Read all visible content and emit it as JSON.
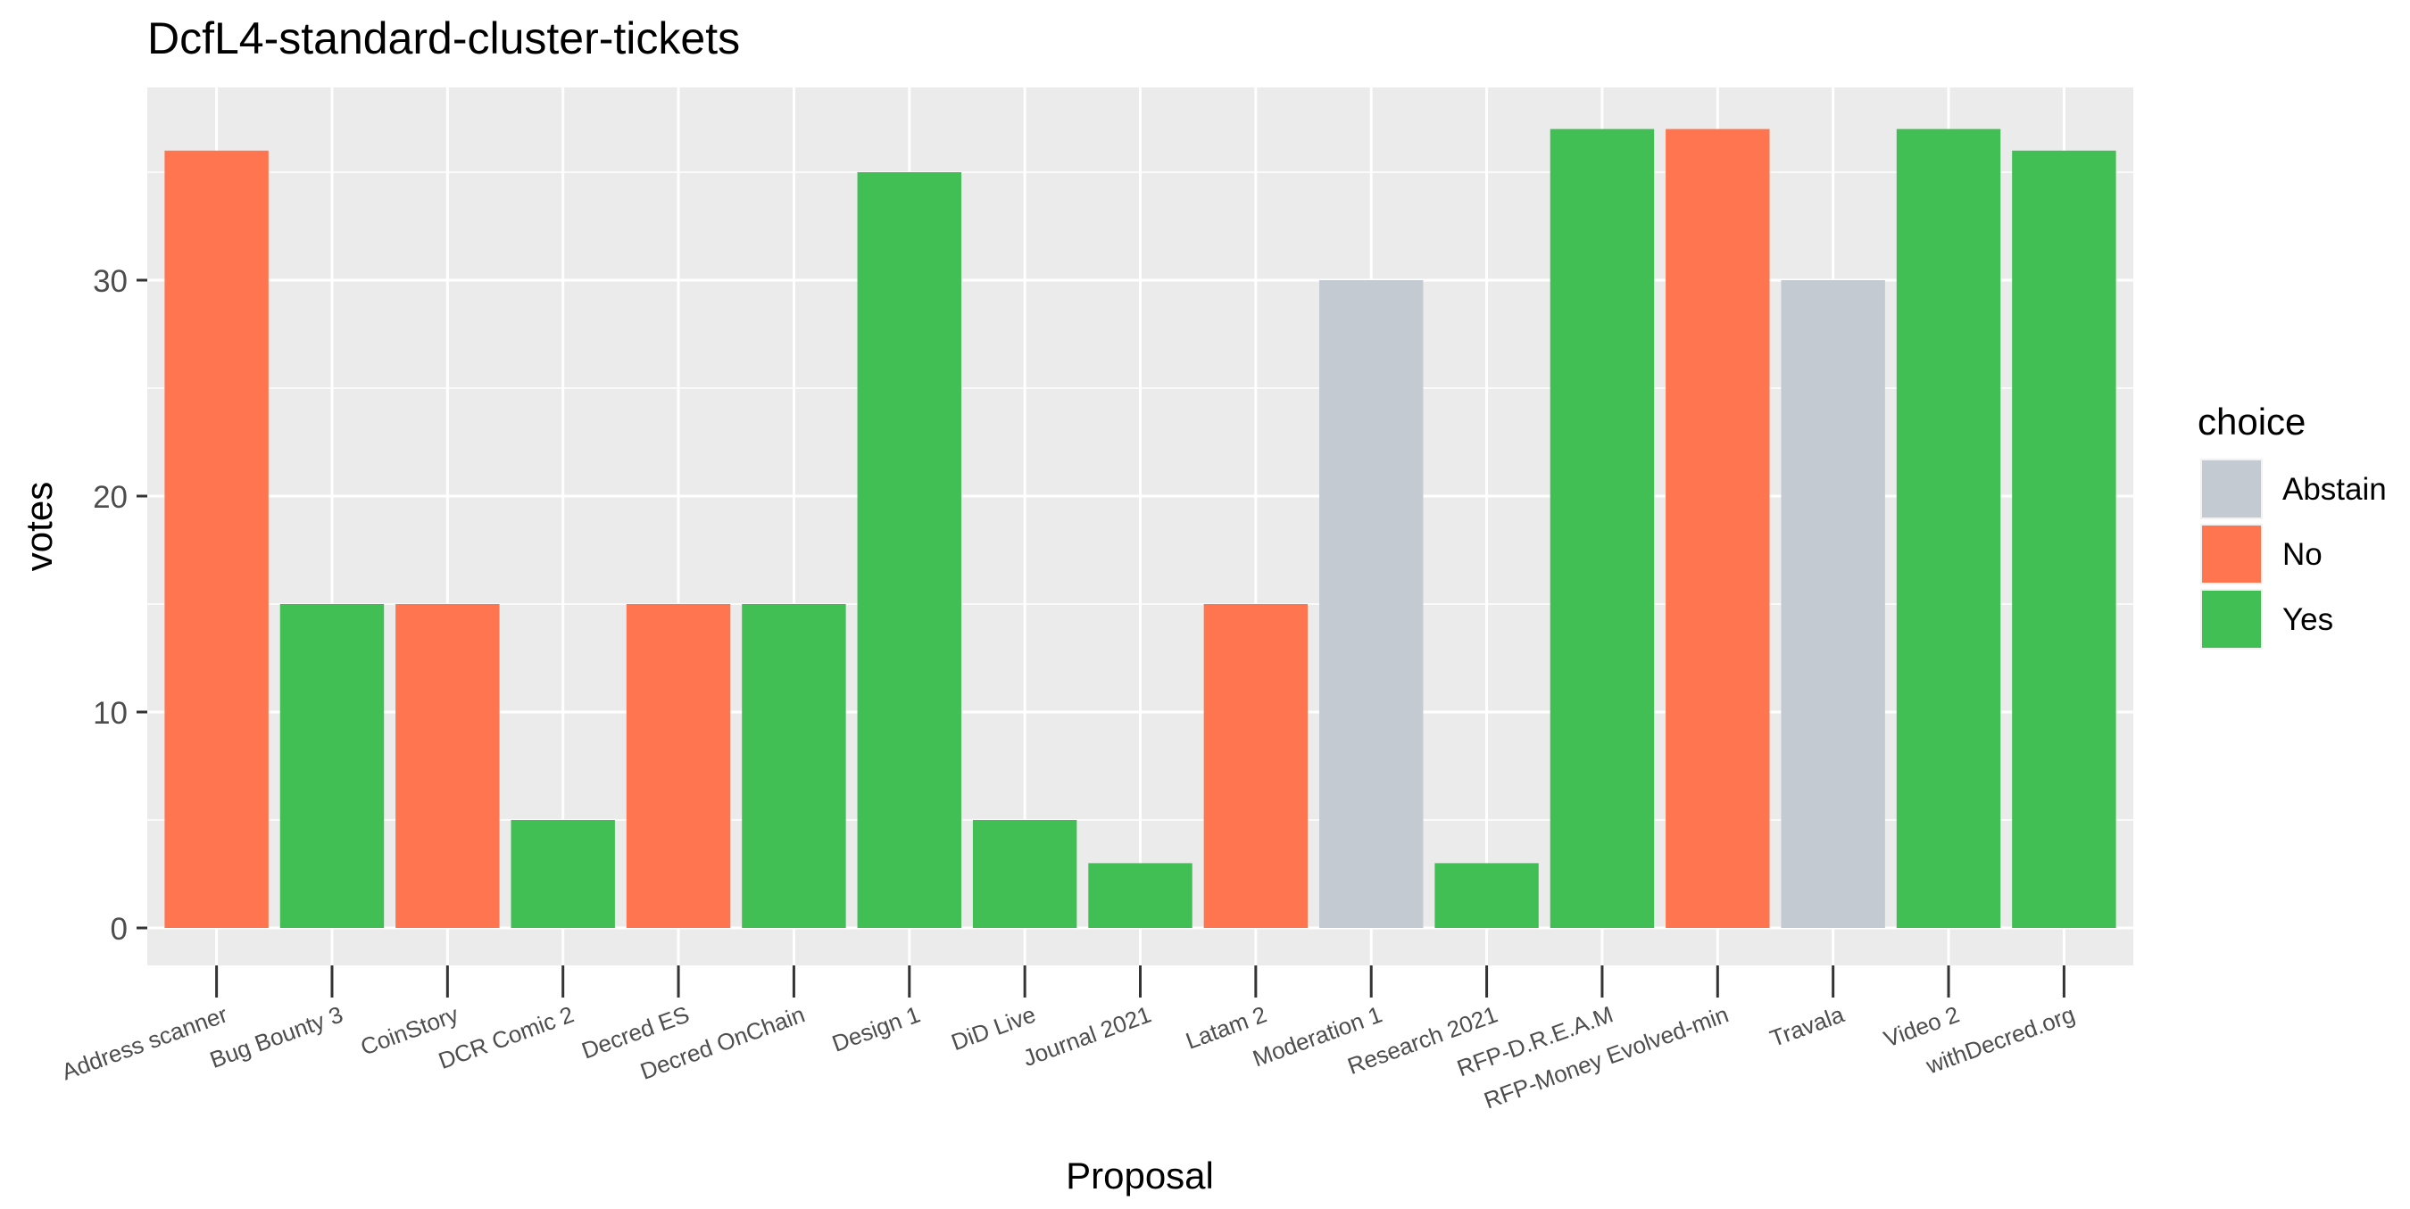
{
  "chart_data": {
    "type": "bar",
    "title": "DcfL4-standard-cluster-tickets",
    "xlabel": "Proposal",
    "ylabel": "votes",
    "ylim": [
      0,
      37
    ],
    "yticks": [
      0,
      10,
      20,
      30
    ],
    "grid": true,
    "legend": {
      "title": "choice",
      "placement": "right",
      "entries": [
        {
          "label": "Abstain",
          "color": "#c4cad2"
        },
        {
          "label": "No",
          "color": "#ff754f"
        },
        {
          "label": "Yes",
          "color": "#41bf55"
        }
      ]
    },
    "categories": [
      "Address scanner",
      "Bug Bounty 3",
      "CoinStory",
      "DCR Comic 2",
      "Decred ES",
      "Decred OnChain",
      "Design 1",
      "DiD Live",
      "Journal 2021",
      "Latam 2",
      "Moderation 1",
      "Research 2021",
      "RFP-D.R.E.A.M",
      "RFP-Money Evolved-min",
      "Travala",
      "Video 2",
      "withDecred.org"
    ],
    "values": [
      36,
      15,
      15,
      5,
      15,
      15,
      35,
      5,
      3,
      15,
      30,
      3,
      37,
      37,
      30,
      37,
      36
    ],
    "choices": [
      "No",
      "Yes",
      "No",
      "Yes",
      "No",
      "Yes",
      "Yes",
      "Yes",
      "Yes",
      "No",
      "Abstain",
      "Yes",
      "Yes",
      "No",
      "Abstain",
      "Yes",
      "Yes"
    ],
    "colors": {
      "Abstain": "#c4cad2",
      "No": "#ff754f",
      "Yes": "#41bf55",
      "panel": "#ebebeb",
      "grid": "#ffffff",
      "text": "#000000",
      "tick_text": "#4d4d4d"
    }
  }
}
